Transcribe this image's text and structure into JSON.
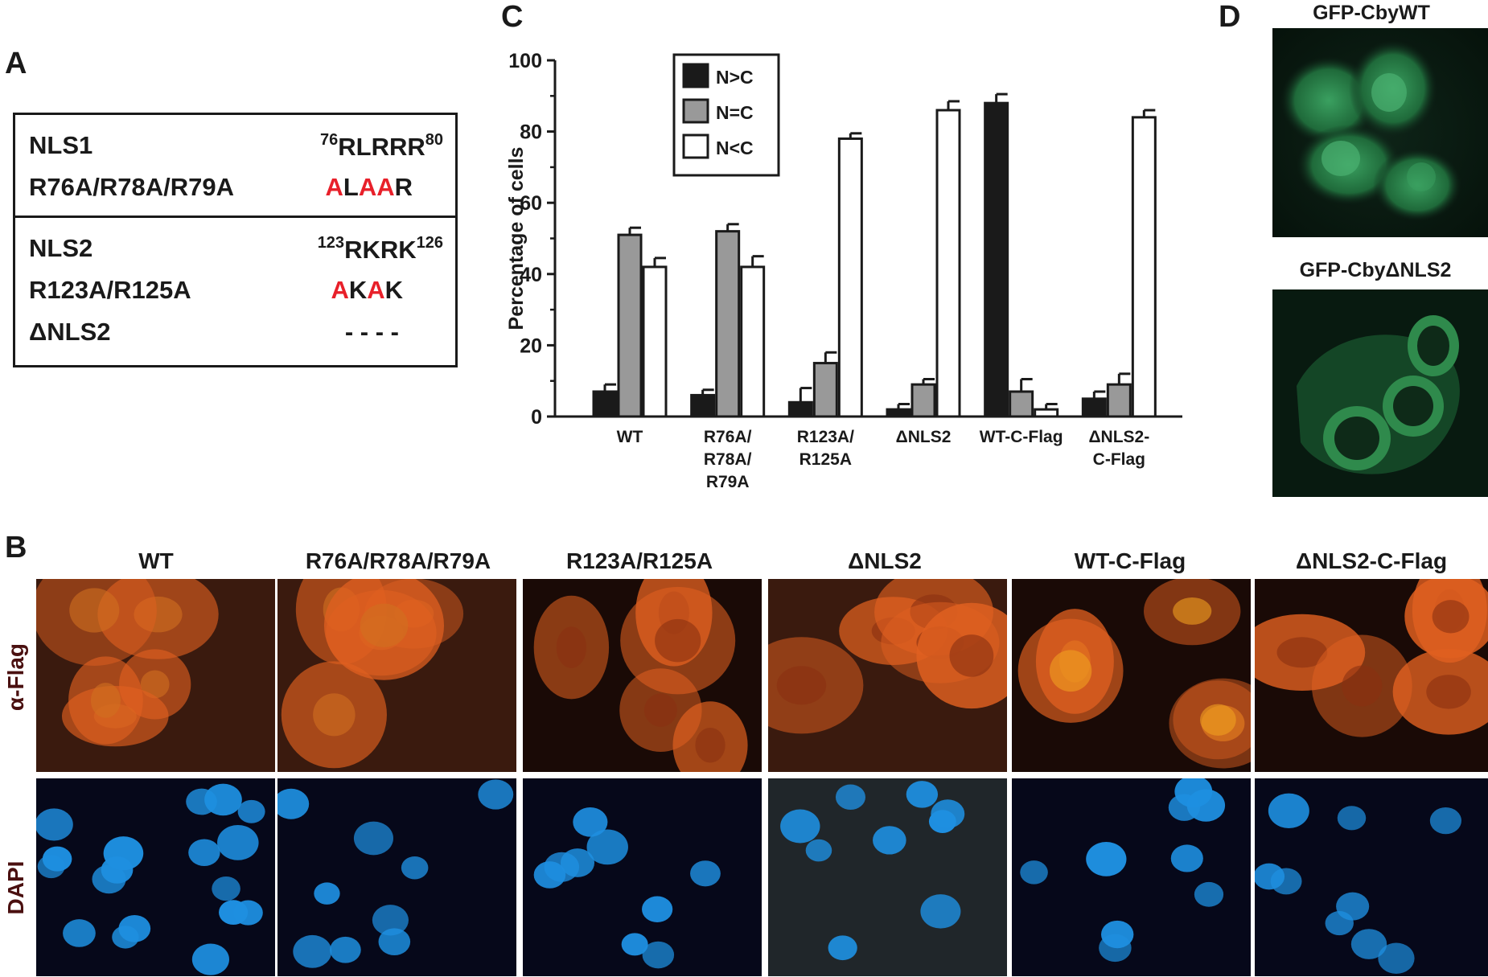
{
  "panel_labels": {
    "a": "A",
    "b": "B",
    "c": "C",
    "d": "D"
  },
  "panel_a": {
    "rows": [
      {
        "name": "NLS1",
        "motif_start": "76",
        "motif": "RLRRR",
        "motif_end": "80"
      },
      {
        "name": "R76A/R78A/R79A",
        "seq": [
          {
            "t": "A",
            "m": true
          },
          {
            "t": "L",
            "m": false
          },
          {
            "t": "A",
            "m": true
          },
          {
            "t": "A",
            "m": true
          },
          {
            "t": "R",
            "m": false
          }
        ]
      },
      {
        "name": "NLS2",
        "motif_start": "123",
        "motif": "RKRK",
        "motif_end": "126"
      },
      {
        "name": "R123A/R125A",
        "seq": [
          {
            "t": "A",
            "m": true
          },
          {
            "t": "K",
            "m": false
          },
          {
            "t": "A",
            "m": true
          },
          {
            "t": "K",
            "m": false
          }
        ]
      },
      {
        "name": "ΔNLS2",
        "deletion": "- - - -"
      }
    ],
    "mutation_color": "#e8202a"
  },
  "chart_data": {
    "type": "bar",
    "title": "",
    "xlabel": "",
    "ylabel": "Percentage of cells",
    "ylim": [
      0,
      100
    ],
    "yticks": [
      0,
      20,
      40,
      60,
      80,
      100
    ],
    "categories": [
      "WT",
      "R76A/\nR78A/\nR79A",
      "R123A/\nR125A",
      "ΔNLS2",
      "WT-C-Flag",
      "ΔNLS2-\nC-Flag"
    ],
    "series": [
      {
        "name": "N>C",
        "color": "#1a1a1a",
        "values": [
          7,
          6,
          4,
          2,
          88,
          5
        ],
        "errors": [
          2,
          1.5,
          4,
          1.5,
          2.5,
          2
        ]
      },
      {
        "name": "N=C",
        "color": "#999999",
        "values": [
          51,
          52,
          15,
          9,
          7,
          9
        ],
        "errors": [
          2,
          2,
          3,
          1.5,
          3.5,
          3
        ]
      },
      {
        "name": "N<C",
        "color": "#ffffff",
        "values": [
          42,
          42,
          78,
          86,
          2,
          84
        ],
        "errors": [
          2.5,
          3,
          1.5,
          2.5,
          1.5,
          2
        ]
      }
    ],
    "legend_position": "top-left",
    "grid": false
  },
  "panel_d": {
    "images": [
      {
        "label": "GFP-CbyWT",
        "pattern": "diffuse nucleus and cytoplasm"
      },
      {
        "label": "GFP-CbyΔNLS2",
        "pattern": "cytoplasmic"
      }
    ],
    "stain_color": "#2a9a50"
  },
  "panel_b": {
    "columns": [
      "WT",
      "R76A/R78A/R79A",
      "R123A/R125A",
      "ΔNLS2",
      "WT-C-Flag",
      "ΔNLS2-C-Flag"
    ],
    "rows": [
      "α-Flag",
      "DAPI"
    ],
    "flag_color": "#e06020",
    "dapi_color": "#1e8fe0"
  }
}
